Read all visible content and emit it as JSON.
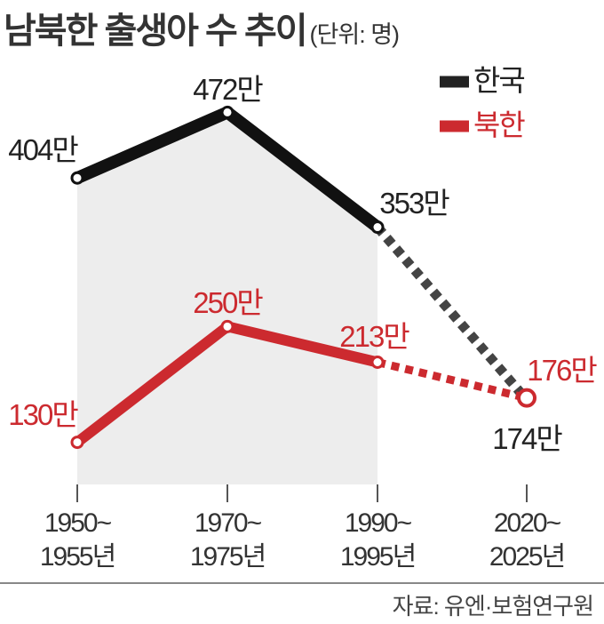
{
  "title": "남북한 출생아 수 추이",
  "unit": "(단위: 명)",
  "source": "자료: 유엔·보험연구원",
  "chart_data": {
    "type": "line",
    "title": "남북한 출생아 수 추이",
    "unit": "명",
    "categories": [
      "1950~|1955년",
      "1970~|1975년",
      "1990~|1995년",
      "2020~|2025년"
    ],
    "series": [
      {
        "name": "한국",
        "color": "#111111",
        "values": [
          404,
          472,
          353,
          174
        ],
        "labels": [
          "404만",
          "472만",
          "353만",
          "174만"
        ],
        "dashed_last_segment": true
      },
      {
        "name": "북한",
        "color": "#cc2a2f",
        "values": [
          130,
          250,
          213,
          176
        ],
        "labels": [
          "130만",
          "250만",
          "213만",
          "176만"
        ],
        "dashed_last_segment": true
      }
    ],
    "value_unit": "만",
    "ylim": [
      90,
      500
    ],
    "grid": false,
    "legend": "top-right"
  }
}
